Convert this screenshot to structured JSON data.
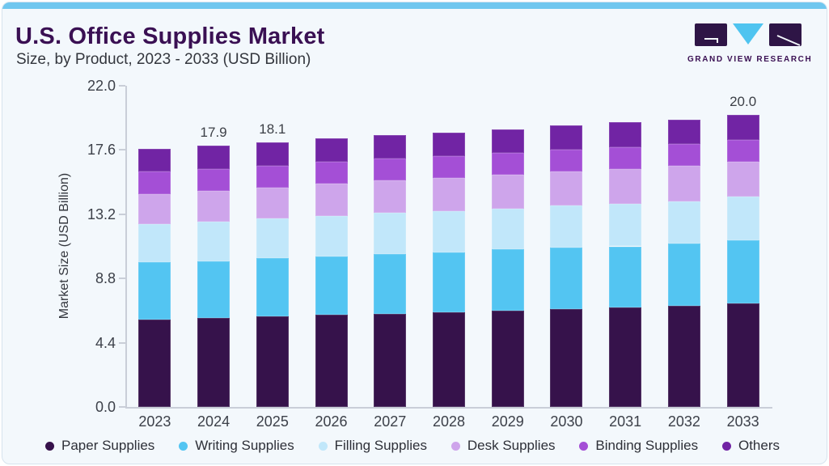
{
  "header": {
    "title": "U.S. Office Supplies Market",
    "subtitle": "Size, by Product, 2023 - 2033 (USD Billion)",
    "brand": "GRAND VIEW RESEARCH"
  },
  "colors": {
    "accent_bar": "#70c7ef",
    "title_text": "#3a1053",
    "card_background": "#f3f8fc",
    "axis_line": "#c9ced8",
    "logo_dark": "#2e1546",
    "logo_blue": "#4fc4f0"
  },
  "chart_data": {
    "type": "bar",
    "stacked": true,
    "title": "U.S. Office Supplies Market Size, by Product, 2023 - 2033 (USD Billion)",
    "categories": [
      "2023",
      "2024",
      "2025",
      "2026",
      "2027",
      "2028",
      "2029",
      "2030",
      "2031",
      "2032",
      "2033"
    ],
    "series": [
      {
        "name": "Paper Supplies",
        "color": "#36124b",
        "values": [
          6.0,
          6.1,
          6.2,
          6.3,
          6.4,
          6.5,
          6.6,
          6.7,
          6.8,
          6.9,
          7.1
        ]
      },
      {
        "name": "Writing Supplies",
        "color": "#53c5f2",
        "values": [
          3.9,
          3.9,
          4.0,
          4.0,
          4.1,
          4.1,
          4.2,
          4.2,
          4.2,
          4.3,
          4.3
        ]
      },
      {
        "name": "Filling Supplies",
        "color": "#c1e7fa",
        "values": [
          2.6,
          2.7,
          2.7,
          2.8,
          2.8,
          2.8,
          2.8,
          2.9,
          2.9,
          2.9,
          3.0
        ]
      },
      {
        "name": "Desk Supplies",
        "color": "#cea5eb",
        "values": [
          2.1,
          2.1,
          2.1,
          2.2,
          2.2,
          2.3,
          2.3,
          2.3,
          2.4,
          2.4,
          2.4
        ]
      },
      {
        "name": "Binding Supplies",
        "color": "#a44fd6",
        "values": [
          1.5,
          1.5,
          1.5,
          1.5,
          1.5,
          1.5,
          1.5,
          1.5,
          1.5,
          1.5,
          1.5
        ]
      },
      {
        "name": "Others",
        "color": "#7124a4",
        "values": [
          1.6,
          1.6,
          1.6,
          1.6,
          1.6,
          1.6,
          1.6,
          1.7,
          1.7,
          1.7,
          1.7
        ]
      }
    ],
    "totals": [
      17.7,
      17.9,
      18.1,
      18.4,
      18.6,
      18.8,
      19.0,
      19.3,
      19.5,
      19.7,
      20.0
    ],
    "bar_labels": {
      "2024": "17.9",
      "2025": "18.1",
      "2033": "20.0"
    },
    "ylabel": "Market Size (USD Billion)",
    "yticks": [
      "0.0",
      "4.4",
      "8.8",
      "13.2",
      "17.6",
      "22.0"
    ],
    "ylim": [
      0,
      22
    ],
    "grid": false,
    "legend_position": "bottom"
  }
}
